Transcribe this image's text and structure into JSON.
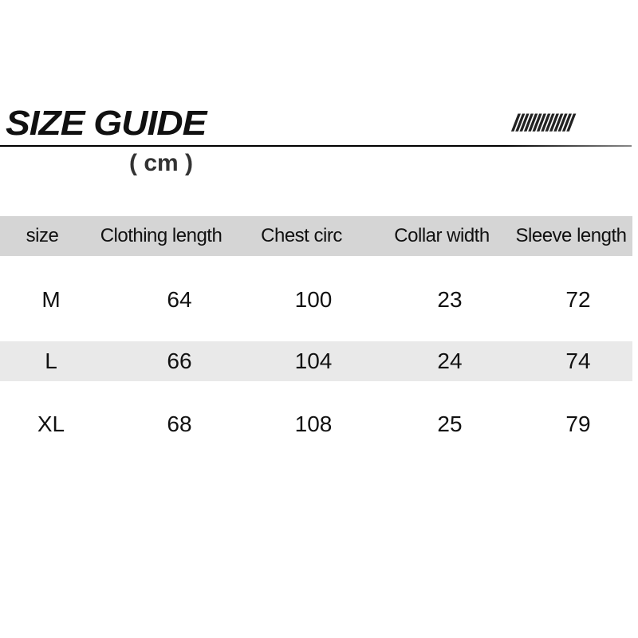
{
  "title": "SIZE GUIDE",
  "decoration": "//////////////",
  "unit": "( cm )",
  "table": {
    "headers": [
      "size",
      "Clothing length",
      "Chest circ",
      "Collar width",
      "Sleeve length"
    ],
    "rows": [
      [
        "M",
        "64",
        "100",
        "23",
        "72"
      ],
      [
        "L",
        "66",
        "104",
        "24",
        "74"
      ],
      [
        "XL",
        "68",
        "108",
        "25",
        "79"
      ]
    ]
  }
}
